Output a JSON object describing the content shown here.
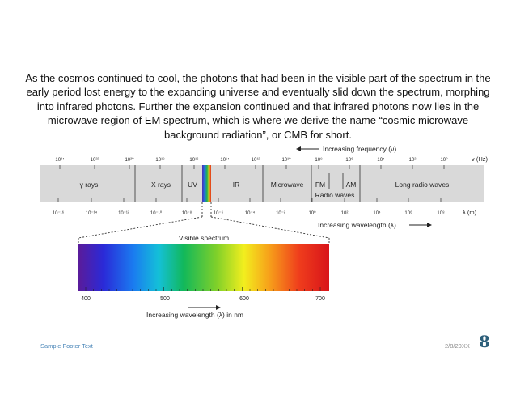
{
  "slide": {
    "body_text": "As the cosmos continued to cool, the photons that had been in the visible part of the spectrum in the early period lost energy to the expanding universe and eventually slid down the spectrum, morphing into infrared photons. Further the expansion continued and that infrared photons now lies in the microwave region of EM spectrum, which is where we derive the name “cosmic microwave background radiation”, or CMB for short.",
    "footer_text": "Sample Footer Text",
    "date_text": "2/8/20XX",
    "page_number": "8"
  },
  "diagram": {
    "frequency_label": "Increasing frequency (ν)",
    "frequency_unit": "ν (Hz)",
    "frequency_ticks": [
      "10²⁴",
      "10²²",
      "10²⁰",
      "10¹⁸",
      "10¹⁶",
      "10¹⁴",
      "10¹²",
      "10¹⁰",
      "10⁸",
      "10⁶",
      "10⁴",
      "10²",
      "10⁰"
    ],
    "wavelength_ticks": [
      "10⁻¹⁶",
      "10⁻¹⁴",
      "10⁻¹²",
      "10⁻¹⁰",
      "10⁻⁸",
      "10⁻⁶",
      "10⁻⁴",
      "10⁻²",
      "10⁰",
      "10²",
      "10⁴",
      "10⁶",
      "10⁸"
    ],
    "wavelength_unit": "λ (m)",
    "wavelength_label": "Increasing wavelength (λ)",
    "bands": {
      "gamma": "γ rays",
      "xray": "X rays",
      "uv": "UV",
      "ir": "IR",
      "microwave": "Microwave",
      "fm": "FM",
      "am": "AM",
      "radio_waves": "Radio waves",
      "long_radio": "Long radio waves"
    },
    "visible_title": "Visible spectrum",
    "visible_ticks": [
      "400",
      "500",
      "600",
      "700"
    ],
    "nm_label": "Increasing wavelength (λ) in nm",
    "colors": {
      "spectrum_bar": "#d9d9d9",
      "divider": "#333333"
    }
  }
}
